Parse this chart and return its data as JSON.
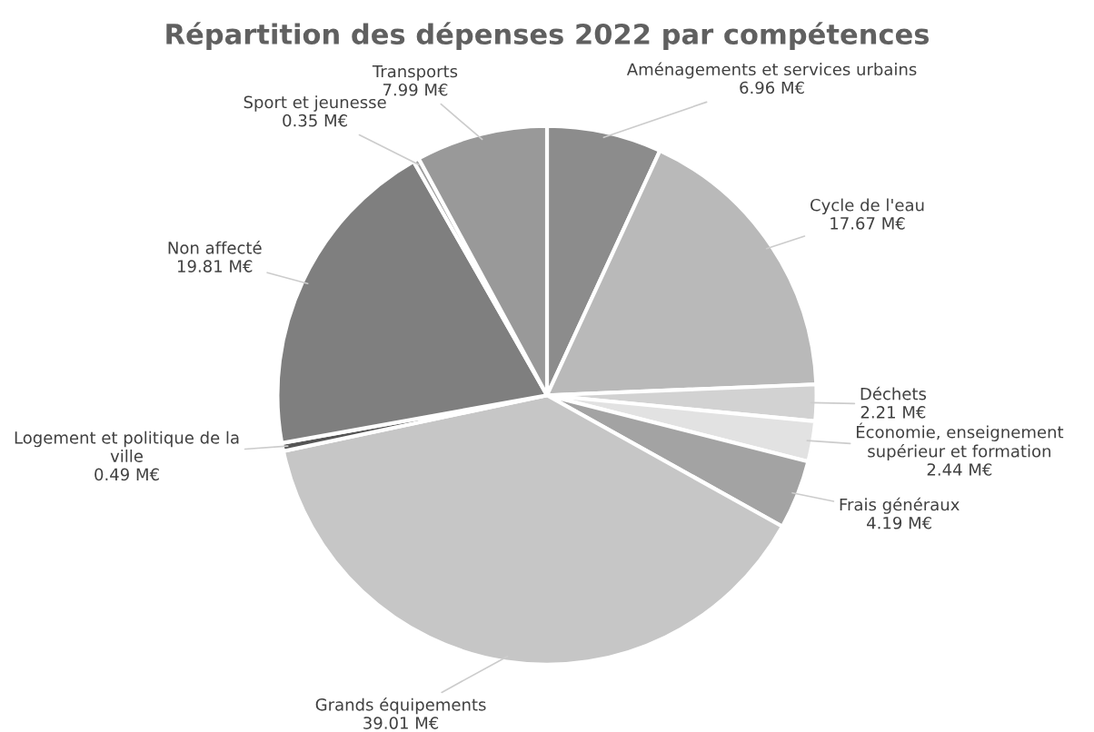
{
  "chart_data": {
    "type": "pie",
    "title": "Répartition des dépenses 2022 par compétences",
    "categories": [
      "Aménagements et services urbains",
      "Cycle de l'eau",
      "Déchets",
      "Économie, enseignement supérieur et formation",
      "Frais généraux",
      "Grands équipements",
      "Logement et politique de la ville",
      "Non affecté",
      "Sport et jeunesse",
      "Transports"
    ],
    "values": [
      6.96,
      17.67,
      2.21,
      2.44,
      4.19,
      39.01,
      0.49,
      19.81,
      0.35,
      7.99
    ],
    "value_labels": [
      "6.96 M€",
      "17.67 M€",
      "2.21 M€",
      "2.44 M€",
      "4.19 M€",
      "39.01 M€",
      "0.49 M€",
      "19.81 M€",
      "0.35 M€",
      "7.99 M€"
    ],
    "colors": [
      "#8c8c8c",
      "#b9b9b9",
      "#d2d2d2",
      "#e2e2e2",
      "#a3a3a3",
      "#c6c6c6",
      "#555555",
      "#7f7f7f",
      "#9e9e9e",
      "#999999"
    ],
    "legend": false
  }
}
